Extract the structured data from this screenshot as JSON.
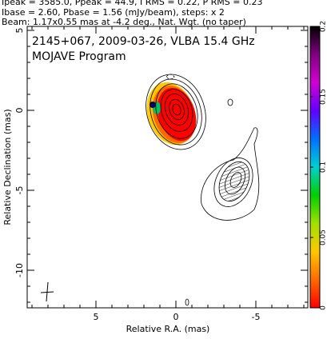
{
  "header": [
    "Ipeak = 3585.0, Ppeak = 44.9, I RMS = 0.22, P RMS = 0.23",
    "Ibase = 2.60, Pbase = 1.56 (mJy/beam), steps: x 2",
    "Beam: 1.17x0.55 mas at -4.2 deg., Nat. Wgt. (no taper)"
  ],
  "chart_data": {
    "type": "contour",
    "title": [
      "2145+067, 2009-03-26, VLBA 15.4 GHz",
      "MOJAVE Program"
    ],
    "x_label": "Relative R.A. (mas)",
    "y_label": "Relative Declination (mas)",
    "xlim": [
      9.3,
      -8.25
    ],
    "ylim": [
      -12.35,
      5.25
    ],
    "xticks": [
      5,
      0,
      -5
    ],
    "yticks": [
      5,
      0,
      -5,
      -10
    ],
    "colorbar": {
      "lim": [
        0,
        0.2
      ],
      "ticks": [
        0,
        0.05,
        0.1,
        0.15,
        0.2
      ],
      "colors": [
        "#ff0000",
        "#ff6a00",
        "#ffc800",
        "#a0e000",
        "#00d000",
        "#00d0d0",
        "#0070ff",
        "#6000ff",
        "#d000d0",
        "#800080",
        "#000000"
      ]
    }
  }
}
